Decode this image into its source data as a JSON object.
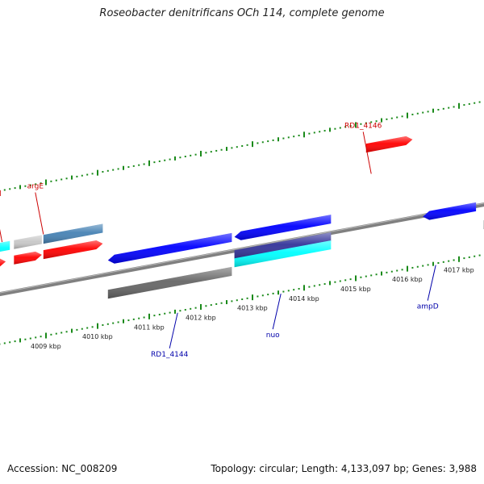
{
  "title": "Roseobacter denitrificans OCh 114, complete genome",
  "footer": {
    "accession": "Accession: NC_008209",
    "summary": "Topology: circular; Length: 4,133,097 bp; Genes: 3,988"
  },
  "ruler": {
    "ticks": [
      {
        "kbp": 4009,
        "label": "4009 kbp"
      },
      {
        "kbp": 4010,
        "label": "4010 kbp"
      },
      {
        "kbp": 4011,
        "label": "4011 kbp"
      },
      {
        "kbp": 4012,
        "label": "4012 kbp"
      },
      {
        "kbp": 4013,
        "label": "4013 kbp"
      },
      {
        "kbp": 4014,
        "label": "4014 kbp"
      },
      {
        "kbp": 4015,
        "label": "4015 kbp"
      },
      {
        "kbp": 4016,
        "label": "4016 kbp"
      },
      {
        "kbp": 4017,
        "label": "4017 kbp"
      }
    ]
  },
  "features": [
    {
      "id": "f1",
      "start": 4007.6,
      "end": 4008.3,
      "lane": "f3",
      "dir": 0,
      "color": "#00ffff"
    },
    {
      "id": "f2",
      "start": 4008.38,
      "end": 4008.92,
      "lane": "f3",
      "dir": 0,
      "color": "#c8c8c8"
    },
    {
      "id": "f3",
      "start": 4008.95,
      "end": 4010.1,
      "lane": "f3",
      "dir": 0,
      "color": "#4682b4"
    },
    {
      "id": "f4",
      "start": 4007.5,
      "end": 4008.22,
      "lane": "f2",
      "dir": 1,
      "color": "#ff0000"
    },
    {
      "id": "f5",
      "start": 4008.38,
      "end": 4008.92,
      "lane": "f2",
      "dir": 1,
      "color": "#ff0000"
    },
    {
      "id": "f6",
      "start": 4008.95,
      "end": 4010.1,
      "lane": "f2",
      "dir": 1,
      "color": "#ff0000"
    },
    {
      "id": "f7",
      "start": 4015.2,
      "end": 4016.1,
      "lane": "f4",
      "dir": 1,
      "color": "#ff0000"
    },
    {
      "id": "f8",
      "start": 4010.2,
      "end": 4012.6,
      "lane": "f1",
      "dir": -1,
      "color": "#0000ff"
    },
    {
      "id": "f9",
      "start": 4012.65,
      "end": 4014.52,
      "lane": "f1",
      "dir": -1,
      "color": "#0000ff"
    },
    {
      "id": "f10",
      "start": 4012.65,
      "end": 4014.52,
      "lane": "r1",
      "dir": 0,
      "color": "#333399"
    },
    {
      "id": "f11",
      "start": 4012.65,
      "end": 4014.52,
      "lane": "r2",
      "dir": 0,
      "color": "#00ffff"
    },
    {
      "id": "f12",
      "start": 4010.2,
      "end": 4012.6,
      "lane": "r3",
      "dir": 0,
      "color": "#666666"
    },
    {
      "id": "f13",
      "start": 4016.3,
      "end": 4017.33,
      "lane": "f0",
      "dir": -1,
      "color": "#0000ff"
    },
    {
      "id": "f14",
      "start": 4017.48,
      "end": 4018.6,
      "lane": "f0",
      "dir": -1,
      "color": "#0000ff"
    },
    {
      "id": "f15",
      "start": 4017.48,
      "end": 4018.6,
      "lane": "r3",
      "dir": 0,
      "color": "#666666"
    }
  ],
  "gene_labels": [
    {
      "text": "tmd",
      "color": "#cc0000",
      "pos": 4008.15,
      "side": "top"
    },
    {
      "text": "argE",
      "color": "#cc0000",
      "pos": 4008.95,
      "side": "top"
    },
    {
      "text": "RD1_4146",
      "color": "#cc0000",
      "pos": 4015.3,
      "side": "top"
    },
    {
      "text": "RD1_4144",
      "color": "#0000aa",
      "pos": 4011.55,
      "side": "bottom"
    },
    {
      "text": "nuo",
      "color": "#0000aa",
      "pos": 4013.55,
      "side": "bottom"
    },
    {
      "text": "ampD",
      "color": "#0000aa",
      "pos": 4016.55,
      "side": "bottom"
    }
  ],
  "colors": {
    "backbone": "#808080",
    "tick": "#1a8a1a"
  }
}
